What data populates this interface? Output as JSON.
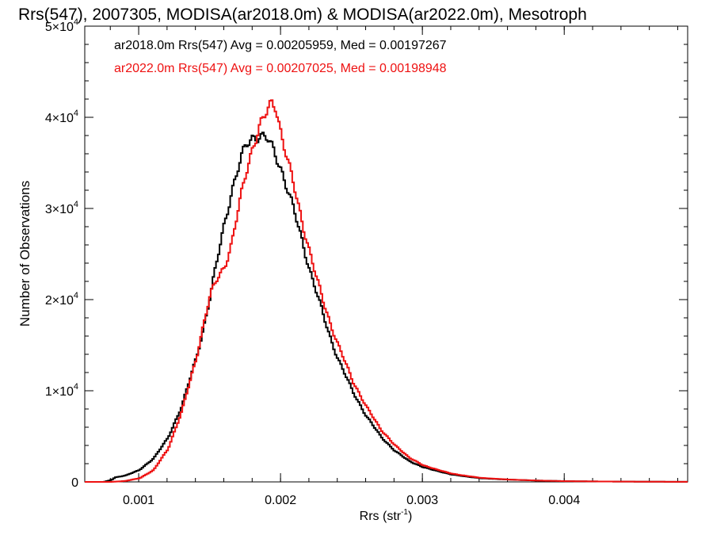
{
  "chart_data": {
    "type": "line",
    "title": "Rrs(547), 2007305, MODISA(ar2018.0m) & MODISA(ar2022.0m), Mesotroph",
    "xlabel": "Rrs (str",
    "xlabel_sup": "-1",
    "xlabel_close": ")",
    "ylabel": "Number of Observations",
    "xlim": [
      0.00062,
      0.00487
    ],
    "ylim": [
      0,
      50000
    ],
    "x_ticks": [
      {
        "value": 0.001,
        "label": "0.001"
      },
      {
        "value": 0.002,
        "label": "0.002"
      },
      {
        "value": 0.003,
        "label": "0.003"
      },
      {
        "value": 0.004,
        "label": "0.004"
      }
    ],
    "y_ticks": [
      {
        "value": 0,
        "mant": "0",
        "exp": ""
      },
      {
        "value": 10000,
        "mant": "1×10",
        "exp": "4"
      },
      {
        "value": 20000,
        "mant": "2×10",
        "exp": "4"
      },
      {
        "value": 30000,
        "mant": "3×10",
        "exp": "4"
      },
      {
        "value": 40000,
        "mant": "4×10",
        "exp": "4"
      },
      {
        "value": 50000,
        "mant": "5×10",
        "exp": "4"
      }
    ],
    "x_minor_step": 0.0002,
    "y_minor_step": 2000,
    "grid": false,
    "legend_position": "top-left",
    "series": [
      {
        "name": "ar2018.0m",
        "color": "#000000",
        "annotation": "ar2018.0m Rrs(547) Avg = 0.00205959, Med = 0.00197267",
        "x": [
          0.00062,
          0.00075,
          0.0008,
          0.00083,
          0.0009,
          0.001,
          0.0011,
          0.0012,
          0.0013,
          0.0014,
          0.00145,
          0.0015,
          0.00155,
          0.0016,
          0.00165,
          0.0017,
          0.00175,
          0.0018,
          0.00185,
          0.0019,
          0.00195,
          0.002,
          0.00205,
          0.0021,
          0.00215,
          0.0022,
          0.00225,
          0.0023,
          0.00235,
          0.0024,
          0.0025,
          0.0026,
          0.0027,
          0.0028,
          0.0029,
          0.003,
          0.0032,
          0.0034,
          0.0036,
          0.0038,
          0.004,
          0.0043,
          0.0046,
          0.00487
        ],
        "y": [
          0,
          0,
          200,
          500,
          700,
          1300,
          2600,
          4800,
          8400,
          13600,
          16800,
          20500,
          24500,
          28500,
          31900,
          34600,
          36900,
          37900,
          38000,
          37600,
          36200,
          34300,
          31800,
          29100,
          26200,
          23300,
          20700,
          18000,
          15600,
          13500,
          10000,
          7200,
          5000,
          3400,
          2300,
          1600,
          800,
          400,
          250,
          150,
          80,
          40,
          20,
          10
        ]
      },
      {
        "name": "ar2022.0m",
        "color": "#ee1111",
        "annotation": "ar2022.0m Rrs(547) Avg = 0.00207025, Med = 0.00198948",
        "x": [
          0.00062,
          0.0008,
          0.0009,
          0.001,
          0.0011,
          0.0012,
          0.0013,
          0.0014,
          0.00145,
          0.0015,
          0.00155,
          0.0016,
          0.00165,
          0.0017,
          0.00175,
          0.0018,
          0.00185,
          0.0019,
          0.00193,
          0.00196,
          0.002,
          0.00205,
          0.0021,
          0.00215,
          0.0022,
          0.00225,
          0.0023,
          0.00235,
          0.0024,
          0.0025,
          0.0026,
          0.0027,
          0.0028,
          0.0029,
          0.003,
          0.0032,
          0.0034,
          0.0036,
          0.0038,
          0.004,
          0.0043,
          0.0046,
          0.00487
        ],
        "y": [
          0,
          0,
          100,
          400,
          1300,
          3600,
          7800,
          13600,
          17200,
          20500,
          22400,
          23700,
          26100,
          30100,
          34000,
          36900,
          39000,
          40600,
          41600,
          41400,
          38100,
          34800,
          31700,
          28400,
          25200,
          22200,
          19600,
          17200,
          15000,
          11200,
          8200,
          5800,
          4000,
          2700,
          1800,
          900,
          450,
          260,
          150,
          80,
          40,
          20,
          10
        ]
      }
    ]
  }
}
